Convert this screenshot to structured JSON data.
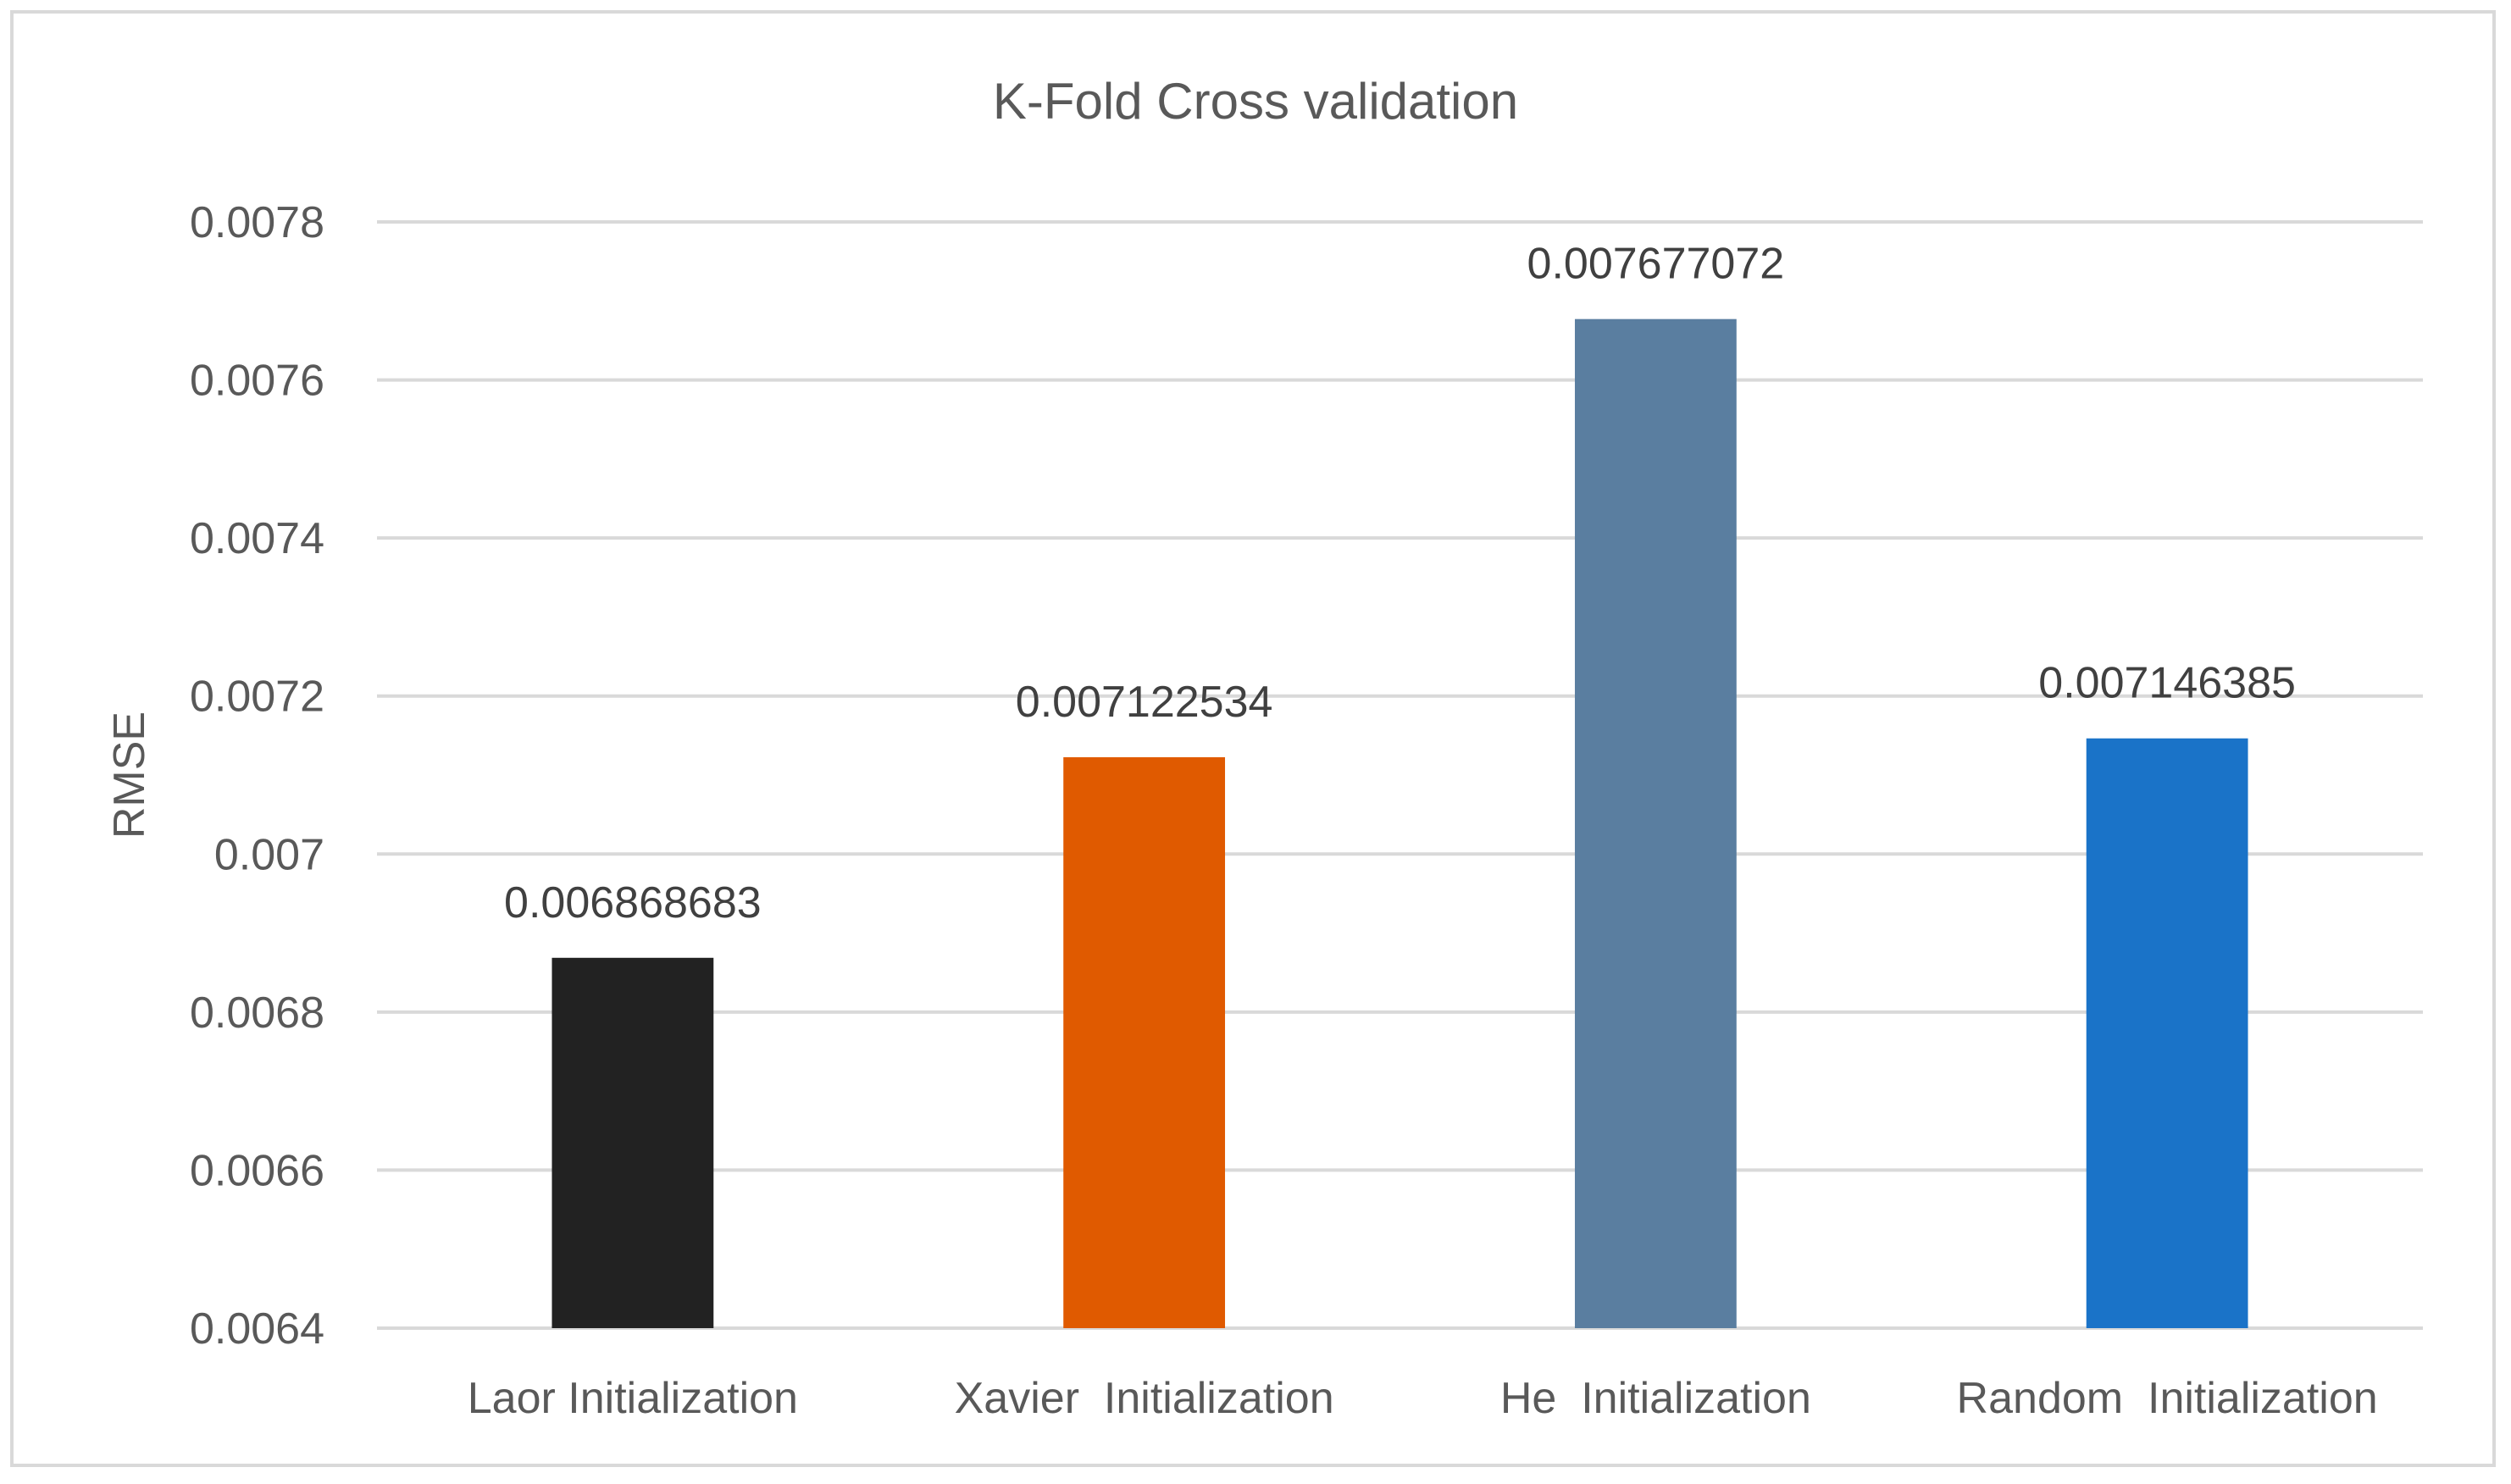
{
  "chart_data": {
    "type": "bar",
    "title": "K-Fold Cross validation",
    "xlabel": "",
    "ylabel": "RMSE",
    "ylim": [
      0.0064,
      0.0078
    ],
    "yticks": [
      "0.0064",
      "0.0066",
      "0.0068",
      "0.007",
      "0.0072",
      "0.0074",
      "0.0076",
      "0.0078"
    ],
    "grid": true,
    "categories": [
      "Laor Initialization",
      "Xavier  Initialization",
      "He  Initialization",
      "Random  Initialization"
    ],
    "values": [
      0.006868683,
      0.007122534,
      0.007677072,
      0.007146385
    ],
    "data_labels": [
      "0.006868683",
      "0.007122534",
      "0.007677072",
      "0.007146385"
    ],
    "colors": [
      "#222222",
      "#e05a00",
      "#5a7ea0",
      "#1a73c8"
    ]
  }
}
